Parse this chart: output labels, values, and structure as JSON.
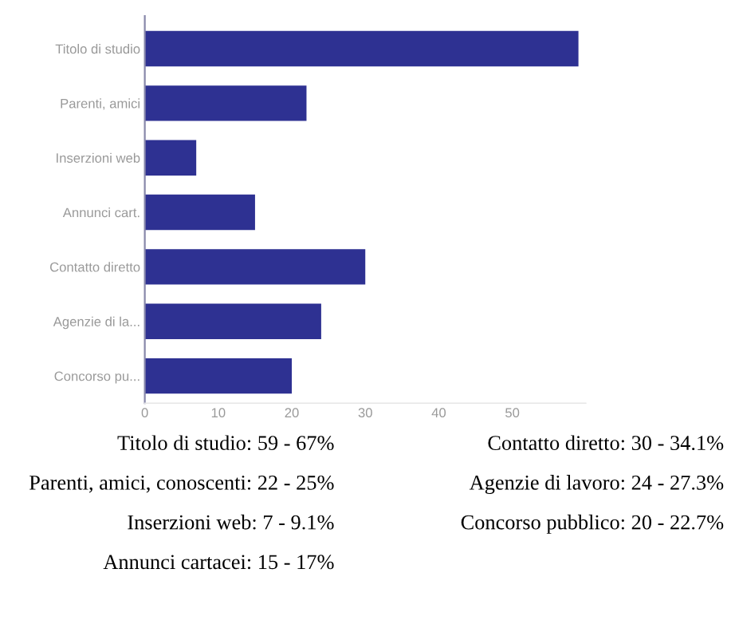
{
  "chart_data": {
    "type": "bar",
    "orientation": "horizontal",
    "categories": [
      "Titolo di studio",
      "Parenti, amici",
      "Inserzioni web",
      "Annunci cart.",
      "Contatto diretto",
      "Agenzie di la...",
      "Concorso pu..."
    ],
    "values": [
      59,
      22,
      7,
      15,
      30,
      24,
      20
    ],
    "color": "#2e3192",
    "xlim": [
      0,
      60
    ],
    "xticks": [
      0,
      10,
      20,
      30,
      40,
      50
    ],
    "grid": false,
    "annotations": [
      "Titolo di studio: 59 - 67%",
      "Parenti, amici, conoscenti: 22 - 25%",
      "Inserzioni web: 7 - 9.1%",
      "Annunci cartacei: 15 - 17%",
      "Contatto diretto: 30 - 34.1%",
      "Agenzie di lavoro: 24 - 27.3%",
      "Concorso pubblico: 20 - 22.7%"
    ]
  }
}
